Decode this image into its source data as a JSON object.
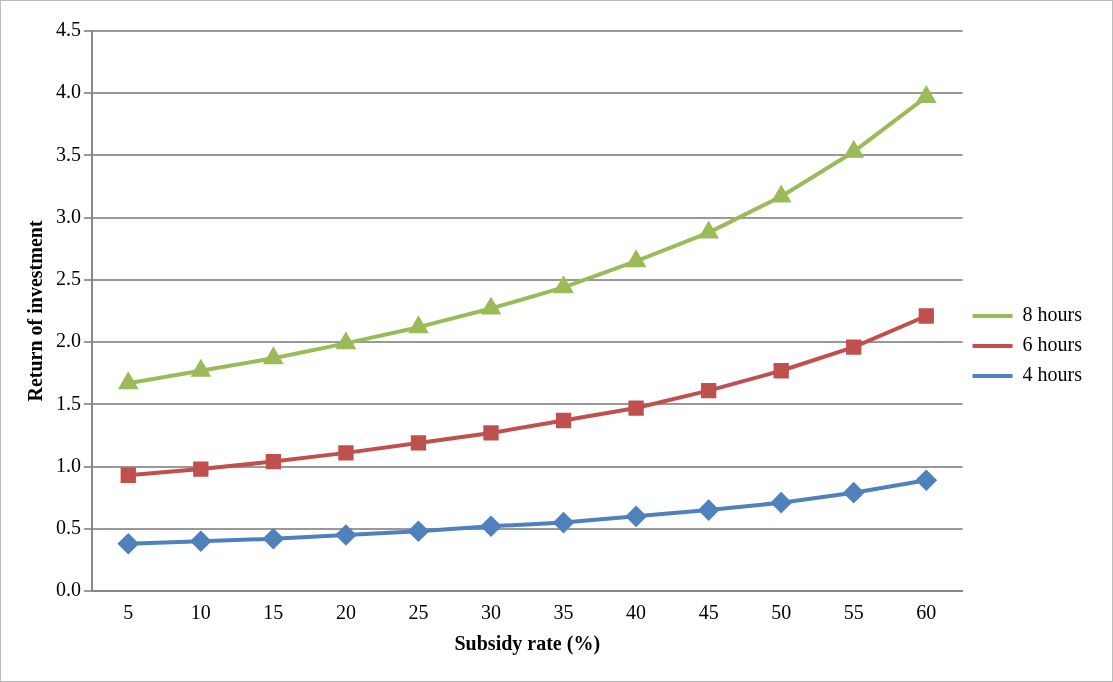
{
  "chart_data": {
    "type": "line",
    "xlabel": "Subsidy rate (%)",
    "ylabel": "Return of investment",
    "categories": [
      "5",
      "10",
      "15",
      "20",
      "25",
      "30",
      "35",
      "40",
      "45",
      "50",
      "55",
      "60"
    ],
    "series": [
      {
        "name": "8 hours",
        "color": "#9bbb59",
        "marker": "triangle",
        "values": [
          1.67,
          1.77,
          1.87,
          1.99,
          2.12,
          2.27,
          2.44,
          2.65,
          2.88,
          3.17,
          3.53,
          3.97
        ]
      },
      {
        "name": "6 hours",
        "color": "#c0504d",
        "marker": "square",
        "values": [
          0.93,
          0.98,
          1.04,
          1.11,
          1.19,
          1.27,
          1.37,
          1.47,
          1.61,
          1.77,
          1.96,
          2.21
        ]
      },
      {
        "name": "4 hours",
        "color": "#4f81bd",
        "marker": "diamond",
        "values": [
          0.38,
          0.4,
          0.42,
          0.45,
          0.48,
          0.52,
          0.55,
          0.6,
          0.65,
          0.71,
          0.79,
          0.89
        ]
      }
    ],
    "ylim": [
      0,
      4.5
    ],
    "yticks": [
      {
        "value": 0,
        "label": "0.0"
      },
      {
        "value": 0.5,
        "label": "0.5"
      },
      {
        "value": 1,
        "label": "1.0"
      },
      {
        "value": 1.5,
        "label": "1.5"
      },
      {
        "value": 2,
        "label": "2.0"
      },
      {
        "value": 2.5,
        "label": "2.5"
      },
      {
        "value": 3,
        "label": "3.0"
      },
      {
        "value": 3.5,
        "label": "3.5"
      },
      {
        "value": 4,
        "label": "4.0"
      },
      {
        "value": 4.5,
        "label": "4.5"
      }
    ],
    "grid": "y",
    "legend": "right"
  }
}
